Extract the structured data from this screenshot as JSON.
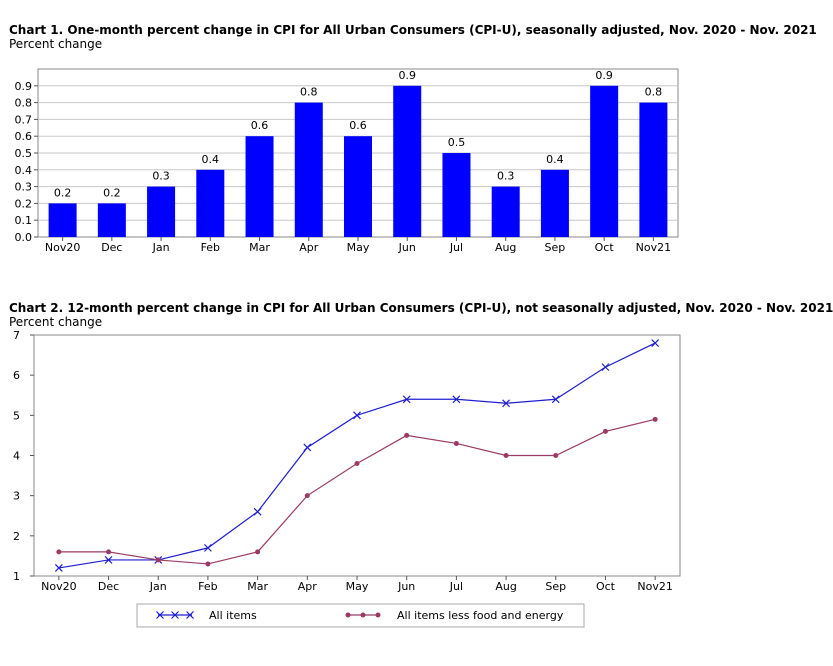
{
  "chart_data": [
    {
      "type": "bar",
      "title": "Chart 1. One-month percent change in CPI for All Urban Consumers (CPI-U), seasonally adjusted, Nov. 2020 - Nov. 2021",
      "subtitle": "Percent change",
      "categories": [
        "Nov20",
        "Dec",
        "Jan",
        "Feb",
        "Mar",
        "Apr",
        "May",
        "Jun",
        "Jul",
        "Aug",
        "Sep",
        "Oct",
        "Nov21"
      ],
      "values": [
        0.2,
        0.2,
        0.3,
        0.4,
        0.6,
        0.8,
        0.6,
        0.9,
        0.5,
        0.3,
        0.4,
        0.9,
        0.8
      ],
      "data_labels": [
        "0.2",
        "0.2",
        "0.3",
        "0.4",
        "0.6",
        "0.8",
        "0.6",
        "0.9",
        "0.5",
        "0.3",
        "0.4",
        "0.9",
        "0.8"
      ],
      "y_ticks": [
        "0.0",
        "0.1",
        "0.2",
        "0.3",
        "0.4",
        "0.5",
        "0.6",
        "0.7",
        "0.8",
        "0.9"
      ],
      "ylim": [
        0,
        1.0
      ],
      "grid": "horizontal",
      "bar_color": "#0000ff"
    },
    {
      "type": "line",
      "title": "Chart 2. 12-month percent change in CPI for All Urban Consumers (CPI-U), not seasonally adjusted, Nov. 2020 - Nov. 2021",
      "subtitle": "Percent change",
      "categories": [
        "Nov20",
        "Dec",
        "Jan",
        "Feb",
        "Mar",
        "Apr",
        "May",
        "Jun",
        "Jul",
        "Aug",
        "Sep",
        "Oct",
        "Nov21"
      ],
      "series": [
        {
          "name": "All items",
          "color": "#1f1fd0",
          "marker": "x",
          "values": [
            1.2,
            1.4,
            1.4,
            1.7,
            2.6,
            4.2,
            5.0,
            5.4,
            5.4,
            5.3,
            5.4,
            6.2,
            6.8
          ]
        },
        {
          "name": "All items less food and energy",
          "color": "#9b3a64",
          "marker": "dot",
          "values": [
            1.6,
            1.6,
            1.4,
            1.3,
            1.6,
            3.0,
            3.8,
            4.5,
            4.3,
            4.0,
            4.0,
            4.6,
            4.9
          ]
        }
      ],
      "y_ticks": [
        "1",
        "2",
        "3",
        "4",
        "5",
        "6",
        "7"
      ],
      "ylim": [
        1,
        7
      ],
      "grid": "none",
      "legend_position": "bottom"
    }
  ]
}
